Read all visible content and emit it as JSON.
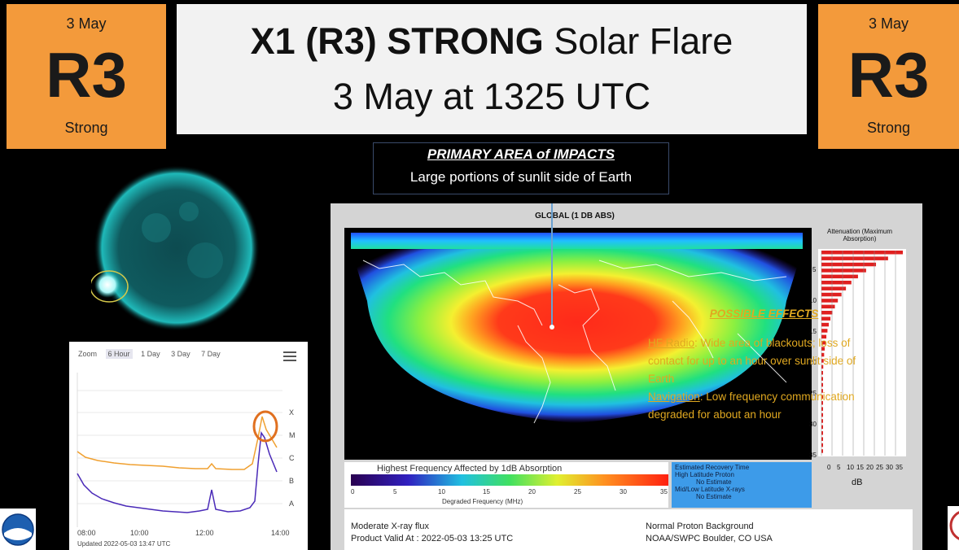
{
  "badge_left": {
    "date": "3 May",
    "code": "R3",
    "label": "Strong"
  },
  "badge_right": {
    "date": "3 May",
    "code": "R3",
    "label": "Strong"
  },
  "title": {
    "bold": "X1 (R3) STRONG",
    "rest": " Solar Flare",
    "line2": "3 May at 1325 UTC"
  },
  "impact": {
    "title": "PRIMARY AREA of IMPACTS",
    "text": "Large portions of sunlit side of Earth"
  },
  "goes_chart": {
    "zoom_label": "Zoom",
    "zoom_options": [
      "6 Hour",
      "1 Day",
      "3 Day",
      "7 Day"
    ],
    "active_zoom": "6 Hour",
    "class_labels": [
      "X",
      "M",
      "C",
      "B",
      "A"
    ],
    "x_ticks": [
      "08:00",
      "10:00",
      "12:00",
      "14:00"
    ],
    "updated": "Updated 2022-05-03 13:47 UTC",
    "series_colors": {
      "long": "#f0a030",
      "short": "#4a2ab8"
    },
    "highlight_color": "#e07020"
  },
  "map": {
    "title": "GLOBAL (1 DB ABS)",
    "atten_title": "Attenuation (Maximum Absorption)",
    "atten_ticks": [
      "5",
      "10",
      "15",
      "20",
      "25",
      "30",
      "35"
    ],
    "atten_x_ticks": [
      "0",
      "5",
      "10",
      "15",
      "20",
      "25",
      "30",
      "35"
    ],
    "atten_unit": "dB",
    "colorbar_title": "Highest Frequency Affected by 1dB Absorption",
    "colorbar_ticks": [
      "0",
      "5",
      "10",
      "15",
      "20",
      "25",
      "30",
      "35"
    ],
    "colorbar_label": "Degraded Frequency (MHz)",
    "recovery": [
      "Estimated Recovery Time",
      "High Latitude Proton",
      "No Estimate",
      "Mid/Low Latitude X-rays",
      "No Estimate"
    ],
    "footer_left": [
      "Moderate X-ray flux",
      "Product Valid At : 2022-05-03 13:25 UTC"
    ],
    "footer_right": [
      "Normal Proton Background",
      "NOAA/SWPC Boulder, CO USA"
    ]
  },
  "effects": {
    "title": "POSSIBLE EFFECTS",
    "hf_label": "HF Radio",
    "hf_text": ": Wide area of blackouts; loss of contact for up to an hour over sunlit side of Earth",
    "nav_label": "Navigation",
    "nav_text": ": Low frequency communication degraded for about an hour"
  },
  "colors": {
    "badge": "#f39a3b",
    "effects_text": "#e0a820",
    "sun": "#1fb9b9"
  }
}
